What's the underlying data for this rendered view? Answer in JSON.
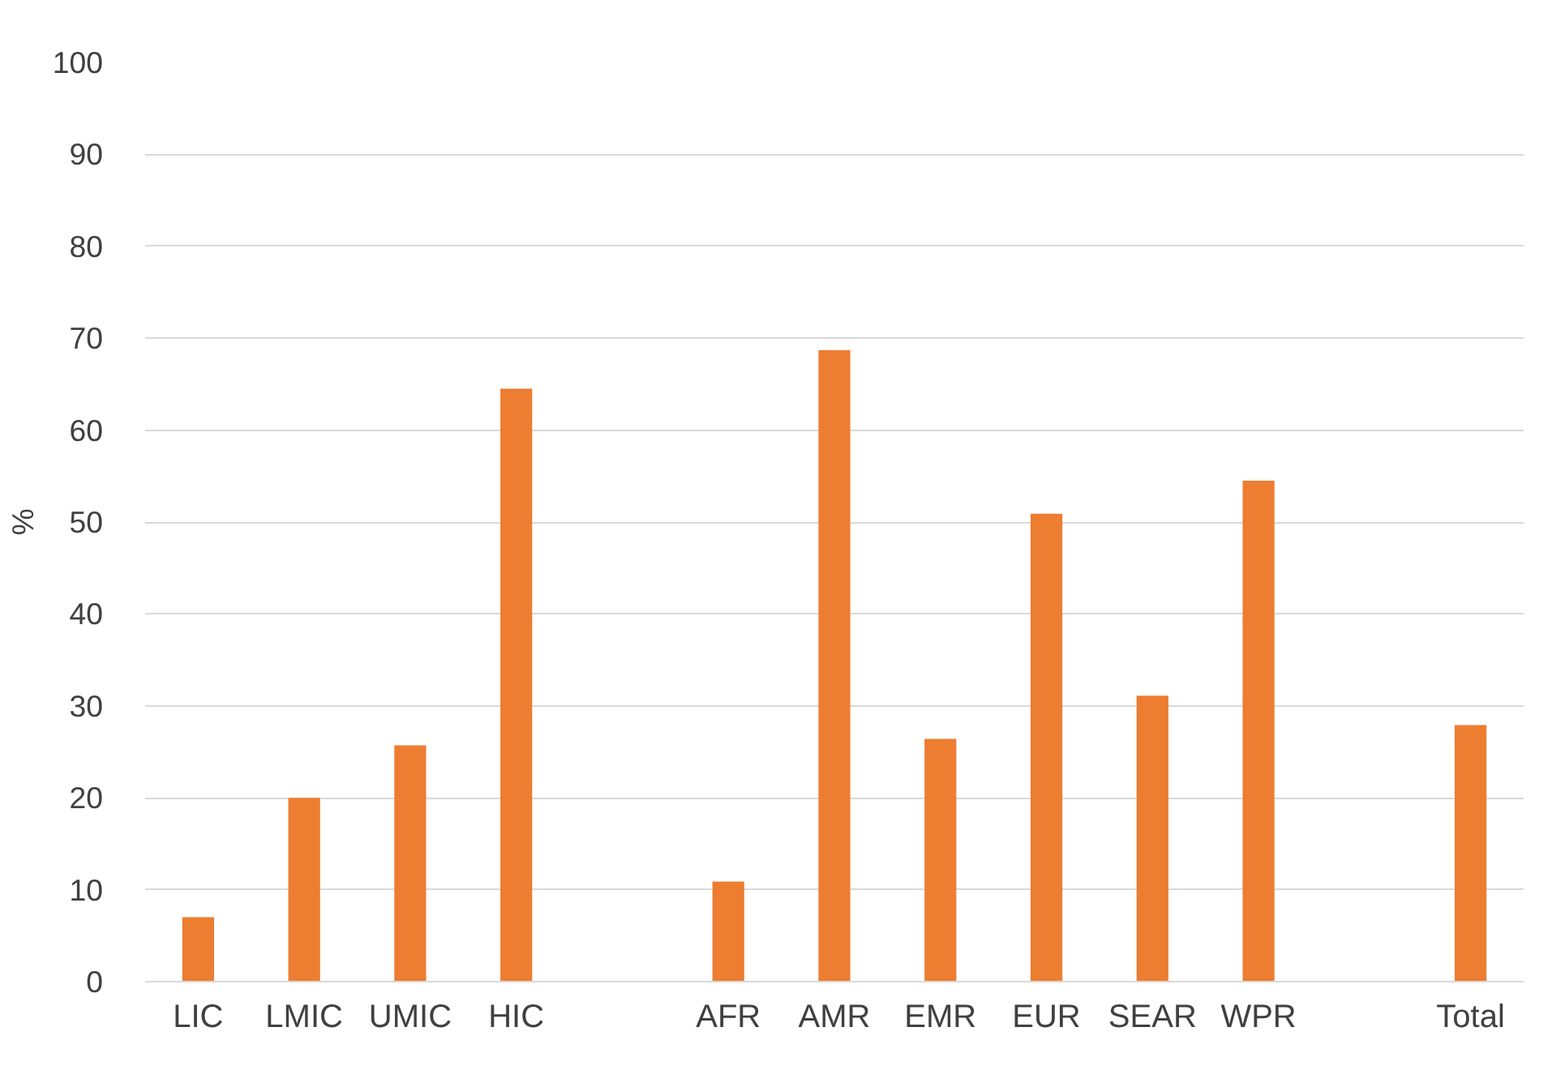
{
  "chart_data": {
    "type": "bar",
    "ylabel": "%",
    "categories": [
      "LIC",
      "LMIC",
      "UMIC",
      "HIC",
      null,
      "AFR",
      "AMR",
      "EMR",
      "EUR",
      "SEAR",
      "WPR",
      null,
      "Total"
    ],
    "values": [
      7,
      20,
      25.7,
      64.5,
      null,
      10.9,
      68.7,
      26.4,
      50.9,
      31.1,
      54.5,
      null,
      27.9
    ],
    "color": "#ed7d31",
    "ylim": [
      0,
      100
    ],
    "yticks": [
      0,
      10,
      20,
      30,
      40,
      50,
      60,
      70,
      80,
      90,
      100
    ],
    "grid": "y"
  }
}
